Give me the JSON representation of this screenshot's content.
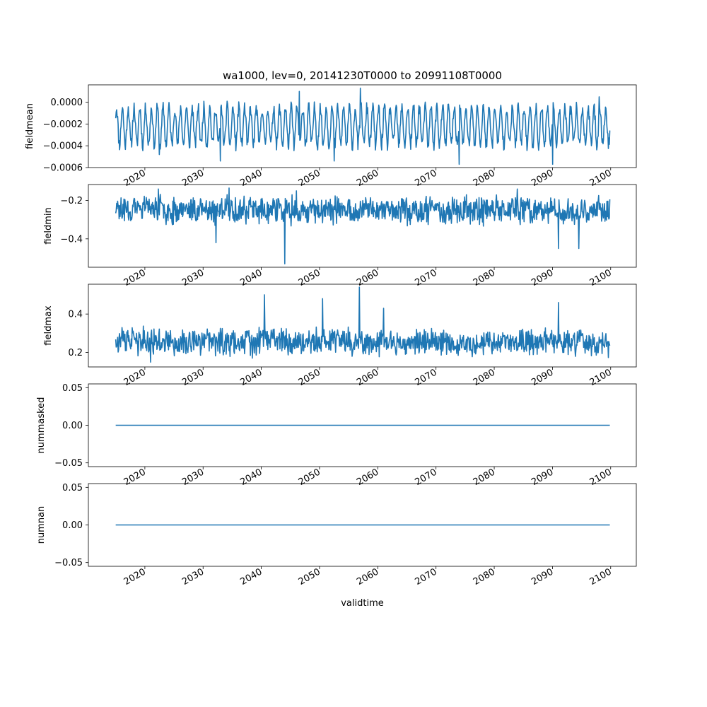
{
  "chart_data": {
    "type": "line",
    "title": "wa1000, lev=0, 20141230T0000 to 20991108T0000",
    "xlabel": "validtime",
    "x_start": "2014-12-30",
    "x_end": "2099-11-08",
    "xlim": [
      2010.3,
      2104.4
    ],
    "x_ticks": [
      2020,
      2030,
      2040,
      2050,
      2060,
      2070,
      2080,
      2090,
      2100
    ],
    "x_tick_labels": [
      "2020",
      "2030",
      "2040",
      "2050",
      "2060",
      "2070",
      "2080",
      "2090",
      "2100"
    ],
    "line_color": "#1f77b4",
    "grid": false,
    "panels": [
      {
        "ylabel": "fieldmean",
        "ylim": [
          -0.0006,
          0.00016
        ],
        "y_ticks": [
          0.0,
          -0.0002,
          -0.0004,
          -0.0006
        ],
        "y_tick_labels": [
          "0.0000",
          "−0.0002",
          "−0.0004",
          "−0.0006"
        ],
        "pattern": {
          "kind": "seasonal",
          "base": -0.00022,
          "amp": 0.00017,
          "noise": 6e-05,
          "min": -0.00057,
          "max": 0.00013,
          "seed": 11
        },
        "spikes": [
          {
            "x": 2022.5,
            "y": -0.00048
          },
          {
            "x": 2033.0,
            "y": -0.00054
          },
          {
            "x": 2046.5,
            "y": 0.0001
          },
          {
            "x": 2052.5,
            "y": -0.00054
          },
          {
            "x": 2057.0,
            "y": 0.00013
          },
          {
            "x": 2074.0,
            "y": -0.00057
          },
          {
            "x": 2090.0,
            "y": -0.00057
          },
          {
            "x": 2098.0,
            "y": 5e-05
          }
        ]
      },
      {
        "ylabel": "fieldmin",
        "ylim": [
          -0.548,
          -0.117
        ],
        "y_ticks": [
          -0.2,
          -0.4
        ],
        "y_tick_labels": [
          "−0.2",
          "−0.4"
        ],
        "pattern": {
          "kind": "noisy",
          "base": -0.25,
          "amp": 0.035,
          "noise": 0.055,
          "min": -0.53,
          "max": -0.135,
          "seed": 23
        },
        "spikes": [
          {
            "x": 2022.3,
            "y": -0.14
          },
          {
            "x": 2032.2,
            "y": -0.42
          },
          {
            "x": 2034.5,
            "y": -0.135
          },
          {
            "x": 2044.0,
            "y": -0.53
          },
          {
            "x": 2046.0,
            "y": -0.15
          },
          {
            "x": 2084.0,
            "y": -0.14
          },
          {
            "x": 2091.0,
            "y": -0.45
          },
          {
            "x": 2094.5,
            "y": -0.45
          }
        ]
      },
      {
        "ylabel": "fieldmax",
        "ylim": [
          0.125,
          0.555
        ],
        "y_ticks": [
          0.2,
          0.4
        ],
        "y_tick_labels": [
          "0.2",
          "0.4"
        ],
        "pattern": {
          "kind": "noisy",
          "base": 0.255,
          "amp": 0.035,
          "noise": 0.055,
          "min": 0.15,
          "max": 0.54,
          "seed": 37
        },
        "spikes": [
          {
            "x": 2040.5,
            "y": 0.5
          },
          {
            "x": 2050.5,
            "y": 0.48
          },
          {
            "x": 2056.8,
            "y": 0.54
          },
          {
            "x": 2061.0,
            "y": 0.43
          },
          {
            "x": 2091.0,
            "y": 0.46
          },
          {
            "x": 2021.0,
            "y": 0.15
          }
        ]
      },
      {
        "ylabel": "nummasked",
        "ylim": [
          -0.055,
          0.055
        ],
        "y_ticks": [
          0.05,
          0.0,
          -0.05
        ],
        "y_tick_labels": [
          "0.05",
          "0.00",
          "−0.05"
        ],
        "pattern": {
          "kind": "constant",
          "value": 0.0
        }
      },
      {
        "ylabel": "numnan",
        "ylim": [
          -0.055,
          0.055
        ],
        "y_ticks": [
          0.05,
          0.0,
          -0.05
        ],
        "y_tick_labels": [
          "0.05",
          "0.00",
          "−0.05"
        ],
        "pattern": {
          "kind": "constant",
          "value": 0.0
        }
      }
    ]
  }
}
